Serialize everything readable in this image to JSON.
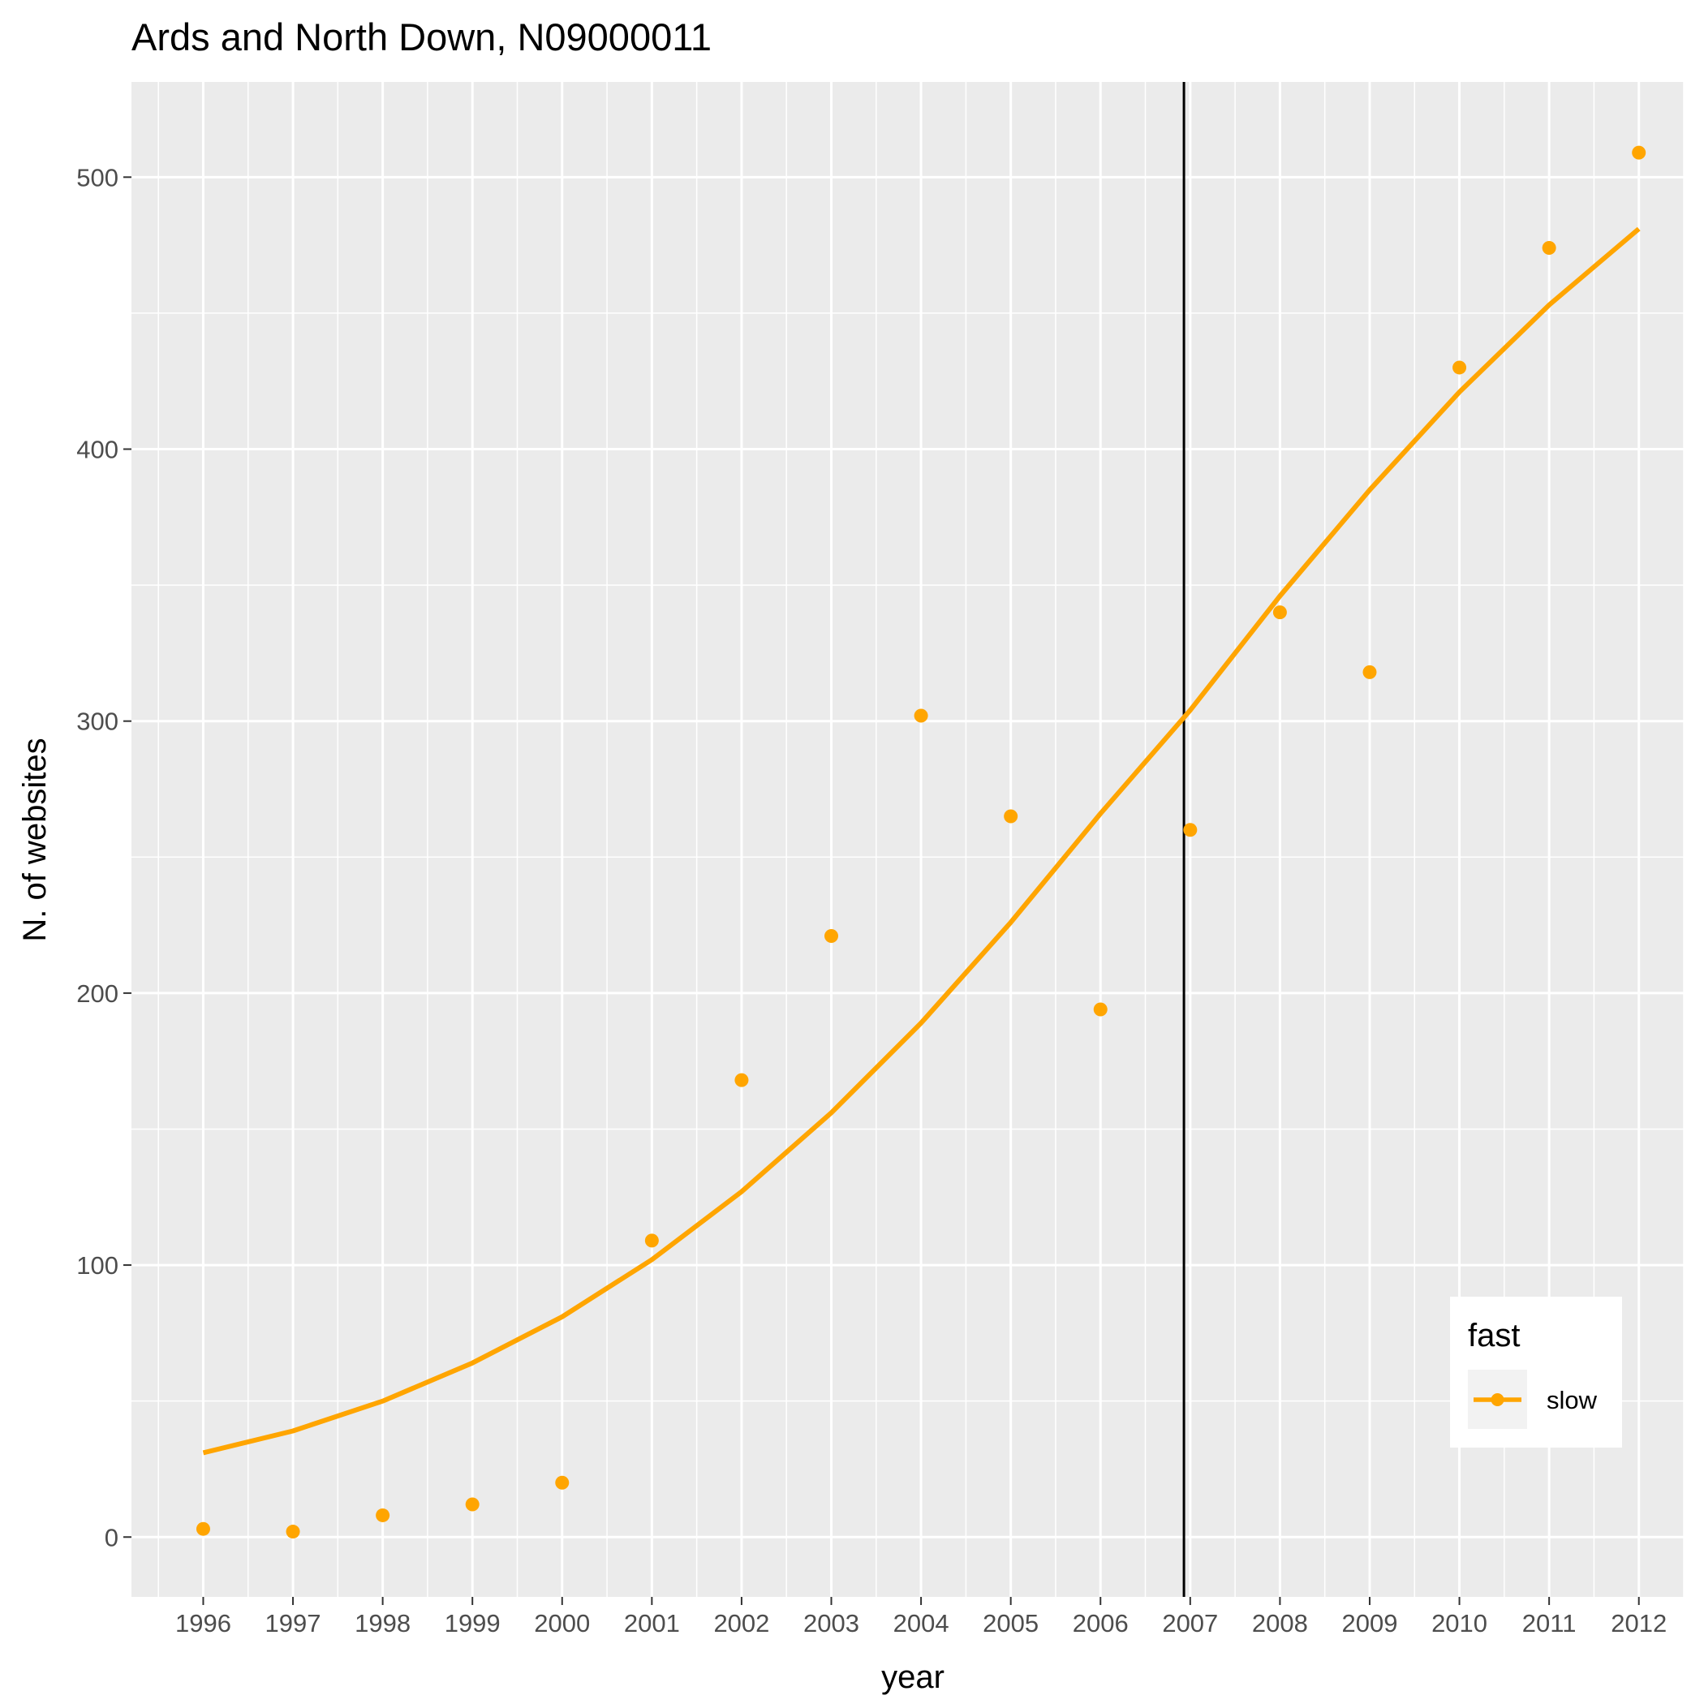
{
  "chart_data": {
    "type": "scatter",
    "title": "Ards and North Down, N09000011",
    "xlabel": "year",
    "ylabel": "N. of websites",
    "x": [
      1996,
      1997,
      1998,
      1999,
      2000,
      2001,
      2002,
      2003,
      2004,
      2005,
      2006,
      2007,
      2008,
      2009,
      2010,
      2011,
      2012
    ],
    "x_tick_labels": [
      "1996",
      "1997",
      "1998",
      "1999",
      "2000",
      "2001",
      "2002",
      "2003",
      "2004",
      "2005",
      "2006",
      "2007",
      "2008",
      "2009",
      "2010",
      "2011",
      "2012"
    ],
    "y_ticks": [
      0,
      100,
      200,
      300,
      400,
      500
    ],
    "y_tick_labels": [
      "0",
      "100",
      "200",
      "300",
      "400",
      "500"
    ],
    "xlim": [
      1995.2,
      2012.5
    ],
    "ylim": [
      -22,
      535
    ],
    "grid": true,
    "vline": {
      "x": 2006.93,
      "color": "#000000"
    },
    "series": [
      {
        "name": "slow",
        "color": "#FFA500",
        "points": [
          3,
          2,
          8,
          12,
          20,
          109,
          168,
          221,
          302,
          265,
          194,
          260,
          340,
          318,
          430,
          474,
          509
        ],
        "trend": [
          31,
          39,
          50,
          64,
          81,
          102,
          127,
          156,
          189,
          226,
          266,
          304,
          346,
          385,
          421,
          453,
          481
        ]
      }
    ],
    "legend": {
      "title": "fast",
      "entries": [
        "slow"
      ],
      "position": "bottom-right"
    }
  }
}
